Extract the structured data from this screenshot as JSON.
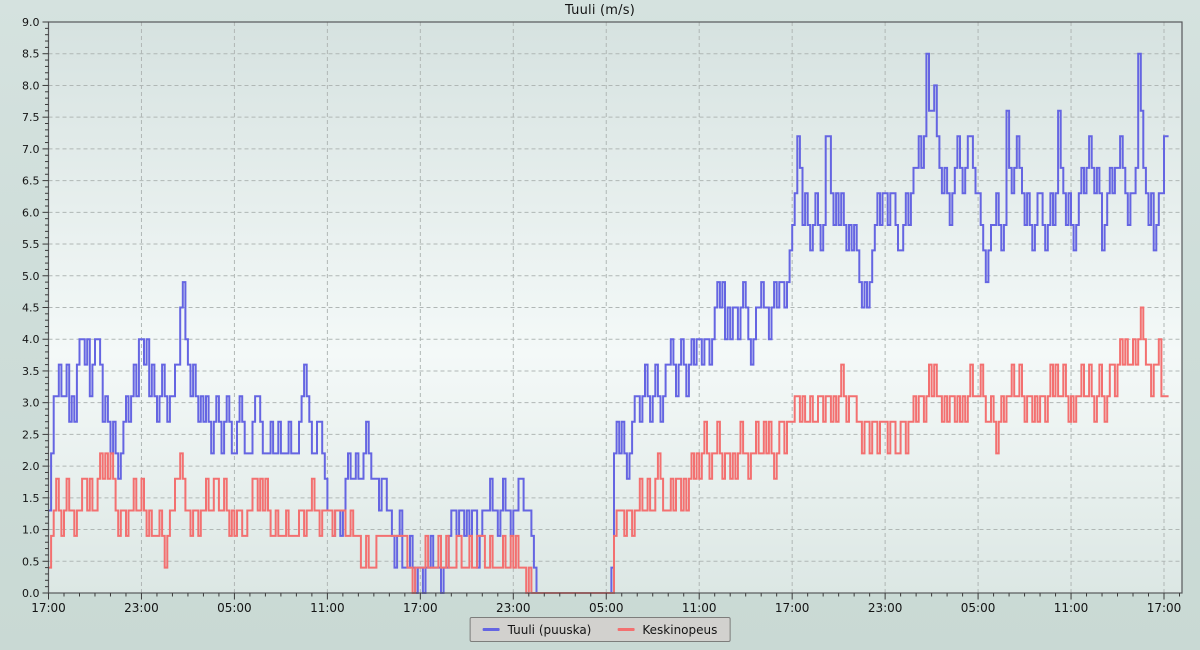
{
  "page": {
    "title": "Tuuli (m/s)"
  },
  "colors": {
    "page_bg": "#cfdeda",
    "plot_bg_top": "#d6e2e0",
    "plot_bg_mid": "#f4f9f8",
    "plot_bg_bottom": "#dce7e4",
    "plot_border": "#56585a",
    "grid": "#b0b7b5",
    "tick": "#3a3a3a",
    "label_text": "#141414",
    "legend_bg": "#d2d1ce",
    "legend_border": "#7d7d7b"
  },
  "chart_data": {
    "type": "line",
    "title": "Tuuli (m/s)",
    "step_interpolation": true,
    "sample_interval_minutes": 10,
    "duration_hours": 72,
    "x_axis": {
      "tick_labels": [
        "17:00",
        "23:00",
        "05:00",
        "11:00",
        "17:00",
        "23:00",
        "05:00",
        "11:00",
        "17:00",
        "23:00",
        "05:00",
        "11:00",
        "17:00"
      ],
      "major_tick_every_hours": 6,
      "minor_tick_every_hours": 1
    },
    "y_axis": {
      "min": 0.0,
      "max": 9.0,
      "major_step": 0.5,
      "minor_step": 0.1
    },
    "grid": {
      "horizontal": true,
      "vertical": true,
      "style": "dashed"
    },
    "legend": {
      "position": "bottom-center",
      "entries": [
        "Tuuli (puuska)",
        "Keskinopeus"
      ]
    },
    "series": [
      {
        "name": "Tuuli (puuska)",
        "color": "#6565e2",
        "values": [
          1.3,
          2.2,
          3.1,
          3.1,
          3.6,
          3.1,
          3.1,
          3.6,
          2.7,
          3.1,
          2.7,
          3.6,
          4.0,
          4.0,
          3.6,
          4.0,
          3.1,
          3.6,
          4.0,
          4.0,
          3.6,
          2.7,
          3.1,
          2.7,
          2.2,
          2.7,
          2.2,
          1.8,
          2.2,
          2.7,
          3.1,
          2.7,
          3.1,
          3.6,
          3.1,
          4.0,
          4.0,
          3.6,
          4.0,
          3.1,
          3.6,
          3.1,
          2.7,
          3.1,
          3.6,
          3.1,
          2.7,
          3.1,
          3.1,
          3.6,
          3.6,
          4.5,
          4.9,
          4.0,
          3.6,
          3.1,
          3.6,
          3.1,
          2.7,
          3.1,
          2.7,
          3.1,
          2.7,
          2.2,
          2.7,
          3.1,
          2.7,
          2.2,
          2.7,
          3.1,
          2.7,
          2.2,
          2.2,
          2.7,
          3.1,
          2.7,
          2.2,
          2.2,
          2.2,
          2.7,
          3.1,
          3.1,
          2.7,
          2.2,
          2.2,
          2.2,
          2.7,
          2.2,
          2.2,
          2.7,
          2.2,
          2.2,
          2.2,
          2.7,
          2.2,
          2.2,
          2.2,
          2.7,
          3.1,
          3.6,
          3.1,
          2.7,
          2.2,
          2.2,
          2.7,
          2.7,
          2.2,
          1.8,
          1.3,
          1.3,
          0.9,
          1.3,
          1.3,
          0.9,
          1.3,
          1.8,
          2.2,
          1.8,
          1.8,
          2.2,
          1.8,
          1.8,
          2.2,
          2.7,
          2.2,
          1.8,
          1.8,
          1.8,
          1.3,
          1.8,
          1.8,
          1.3,
          1.3,
          0.9,
          0.4,
          0.9,
          1.3,
          0.4,
          0.4,
          0.4,
          0.9,
          0.4,
          0.0,
          0.4,
          0.4,
          0.0,
          0.4,
          0.4,
          0.9,
          0.4,
          0.4,
          0.4,
          0.0,
          0.4,
          0.4,
          0.9,
          1.3,
          1.3,
          0.9,
          1.3,
          1.3,
          0.9,
          1.3,
          0.9,
          1.3,
          1.3,
          0.4,
          0.9,
          1.3,
          1.3,
          1.3,
          1.8,
          1.3,
          1.3,
          0.9,
          1.3,
          1.8,
          1.3,
          1.3,
          0.9,
          1.3,
          1.3,
          1.8,
          1.8,
          1.3,
          1.3,
          1.3,
          0.9,
          0.4,
          0.0,
          0.0,
          0.0,
          0.0,
          0.0,
          0.0,
          0.0,
          0.0,
          0.0,
          0.0,
          0.0,
          0.0,
          0.0,
          0.0,
          0.0,
          0.0,
          0.0,
          0.0,
          0.0,
          0.0,
          0.0,
          0.0,
          0.0,
          0.0,
          0.0,
          0.0,
          0.0,
          0.0,
          0.0,
          0.4,
          2.2,
          2.7,
          2.2,
          2.7,
          2.2,
          1.8,
          2.2,
          2.7,
          3.1,
          3.1,
          2.7,
          3.1,
          3.6,
          3.1,
          2.7,
          3.1,
          3.6,
          3.1,
          2.7,
          3.1,
          3.6,
          3.6,
          4.0,
          3.6,
          3.1,
          3.6,
          4.0,
          3.6,
          3.1,
          3.6,
          4.0,
          3.6,
          4.0,
          4.0,
          3.6,
          4.0,
          4.0,
          3.6,
          4.0,
          4.5,
          4.9,
          4.5,
          4.9,
          4.0,
          4.5,
          4.0,
          4.5,
          4.5,
          4.0,
          4.5,
          4.9,
          4.5,
          4.0,
          3.6,
          4.0,
          4.5,
          4.5,
          4.9,
          4.5,
          4.5,
          4.0,
          4.5,
          4.9,
          4.5,
          4.9,
          4.9,
          4.5,
          4.9,
          5.4,
          5.8,
          6.3,
          7.2,
          6.7,
          5.8,
          6.3,
          5.8,
          5.4,
          5.8,
          6.3,
          5.8,
          5.4,
          5.8,
          7.2,
          7.2,
          6.3,
          5.8,
          6.3,
          5.8,
          6.3,
          5.8,
          5.4,
          5.8,
          5.4,
          5.8,
          5.4,
          4.9,
          4.5,
          4.9,
          4.5,
          4.9,
          5.4,
          5.8,
          6.3,
          5.8,
          6.3,
          6.3,
          5.8,
          6.3,
          6.3,
          5.8,
          5.4,
          5.4,
          5.8,
          6.3,
          5.8,
          6.3,
          6.7,
          6.7,
          7.2,
          6.7,
          7.2,
          8.5,
          7.6,
          7.6,
          8.0,
          7.2,
          6.7,
          6.3,
          6.7,
          6.3,
          5.8,
          6.3,
          6.7,
          7.2,
          6.7,
          6.3,
          6.7,
          7.2,
          7.2,
          6.7,
          6.3,
          6.3,
          5.8,
          5.4,
          4.9,
          5.4,
          5.8,
          5.8,
          6.3,
          5.8,
          5.4,
          5.8,
          7.6,
          6.7,
          6.3,
          6.7,
          7.2,
          6.7,
          6.3,
          5.8,
          6.3,
          5.8,
          5.4,
          5.8,
          6.3,
          6.3,
          5.8,
          5.4,
          5.8,
          6.3,
          5.8,
          6.3,
          7.6,
          6.7,
          6.3,
          5.8,
          6.3,
          5.8,
          5.4,
          5.8,
          6.3,
          6.7,
          6.3,
          6.7,
          7.2,
          6.7,
          6.3,
          6.7,
          6.3,
          5.4,
          5.8,
          6.3,
          6.7,
          6.3,
          6.7,
          6.7,
          7.2,
          6.7,
          6.3,
          5.8,
          6.3,
          6.3,
          6.7,
          8.5,
          7.6,
          6.7,
          6.3,
          5.8,
          6.3,
          5.4,
          5.8,
          6.3,
          6.3,
          7.2
        ]
      },
      {
        "name": "Keskinopeus",
        "color": "#f37070",
        "values": [
          0.4,
          0.9,
          1.3,
          1.8,
          1.3,
          0.9,
          1.3,
          1.8,
          1.3,
          1.3,
          0.9,
          1.3,
          1.3,
          1.8,
          1.8,
          1.3,
          1.8,
          1.3,
          1.3,
          1.8,
          2.2,
          1.8,
          2.2,
          1.8,
          2.2,
          1.8,
          1.3,
          0.9,
          1.3,
          1.3,
          0.9,
          1.3,
          1.3,
          1.8,
          1.3,
          1.3,
          1.8,
          1.3,
          0.9,
          1.3,
          0.9,
          0.9,
          0.9,
          1.3,
          0.9,
          0.4,
          0.9,
          1.3,
          1.3,
          1.8,
          1.8,
          2.2,
          1.8,
          1.3,
          1.3,
          0.9,
          1.3,
          1.3,
          0.9,
          1.3,
          1.3,
          1.8,
          1.3,
          1.3,
          1.8,
          1.8,
          1.3,
          1.3,
          1.8,
          1.3,
          0.9,
          1.3,
          0.9,
          1.3,
          1.3,
          0.9,
          0.9,
          1.3,
          1.3,
          1.8,
          1.8,
          1.3,
          1.8,
          1.3,
          1.8,
          1.3,
          0.9,
          0.9,
          1.3,
          0.9,
          0.9,
          0.9,
          1.3,
          0.9,
          0.9,
          0.9,
          0.9,
          1.3,
          1.3,
          0.9,
          1.3,
          1.3,
          1.8,
          1.3,
          1.3,
          0.9,
          1.3,
          1.3,
          1.3,
          1.3,
          0.9,
          1.3,
          1.3,
          1.3,
          1.3,
          0.9,
          0.9,
          1.3,
          0.9,
          0.9,
          0.9,
          0.4,
          0.4,
          0.9,
          0.4,
          0.4,
          0.4,
          0.9,
          0.9,
          0.9,
          0.9,
          0.9,
          0.9,
          0.9,
          0.9,
          0.9,
          0.9,
          0.9,
          0.9,
          0.4,
          0.4,
          0.0,
          0.4,
          0.4,
          0.4,
          0.4,
          0.9,
          0.4,
          0.4,
          0.4,
          0.4,
          0.9,
          0.4,
          0.4,
          0.9,
          0.4,
          0.4,
          0.4,
          0.9,
          0.9,
          0.4,
          0.4,
          0.4,
          0.9,
          0.4,
          0.4,
          0.9,
          0.9,
          0.9,
          0.4,
          0.4,
          0.9,
          0.4,
          0.4,
          0.4,
          0.4,
          0.9,
          0.4,
          0.4,
          0.9,
          0.4,
          0.9,
          0.4,
          0.4,
          0.4,
          0.0,
          0.4,
          0.0,
          0.0,
          0.0,
          0.0,
          0.0,
          0.0,
          0.0,
          0.0,
          0.0,
          0.0,
          0.0,
          0.0,
          0.0,
          0.0,
          0.0,
          0.0,
          0.0,
          0.0,
          0.0,
          0.0,
          0.0,
          0.0,
          0.0,
          0.0,
          0.0,
          0.0,
          0.0,
          0.0,
          0.0,
          0.0,
          0.0,
          0.0,
          0.9,
          1.3,
          1.3,
          1.3,
          0.9,
          1.3,
          1.3,
          0.9,
          1.3,
          1.3,
          1.8,
          1.3,
          1.3,
          1.8,
          1.3,
          1.3,
          1.8,
          2.2,
          1.8,
          1.3,
          1.3,
          1.3,
          1.8,
          1.3,
          1.8,
          1.8,
          1.3,
          1.8,
          1.3,
          1.8,
          2.2,
          1.8,
          2.2,
          1.8,
          2.2,
          2.7,
          2.2,
          1.8,
          2.2,
          2.2,
          2.7,
          2.2,
          1.8,
          2.2,
          2.2,
          1.8,
          2.2,
          1.8,
          2.2,
          2.7,
          2.2,
          2.2,
          1.8,
          2.2,
          2.2,
          2.7,
          2.2,
          2.2,
          2.7,
          2.2,
          2.7,
          2.2,
          1.8,
          2.2,
          2.7,
          2.7,
          2.2,
          2.7,
          2.7,
          2.7,
          3.1,
          3.1,
          2.7,
          3.1,
          2.7,
          2.7,
          3.1,
          2.7,
          2.7,
          3.1,
          3.1,
          2.7,
          3.1,
          3.1,
          2.7,
          3.1,
          2.7,
          3.1,
          3.6,
          3.1,
          2.7,
          3.1,
          3.1,
          3.1,
          2.7,
          2.7,
          2.2,
          2.7,
          2.7,
          2.2,
          2.7,
          2.7,
          2.2,
          2.7,
          2.7,
          2.7,
          2.2,
          2.7,
          2.7,
          2.2,
          2.2,
          2.7,
          2.7,
          2.2,
          2.7,
          2.7,
          3.1,
          2.7,
          3.1,
          3.1,
          2.7,
          3.1,
          3.6,
          3.1,
          3.6,
          3.1,
          3.1,
          2.7,
          3.1,
          2.7,
          3.1,
          3.1,
          2.7,
          3.1,
          2.7,
          3.1,
          2.7,
          3.1,
          3.6,
          3.1,
          3.1,
          3.1,
          3.6,
          3.1,
          2.7,
          2.7,
          3.1,
          2.7,
          2.2,
          2.7,
          3.1,
          2.7,
          3.1,
          3.1,
          3.6,
          3.1,
          3.1,
          3.6,
          3.1,
          2.7,
          3.1,
          3.1,
          2.7,
          3.1,
          2.7,
          3.1,
          3.1,
          2.7,
          3.1,
          3.6,
          3.1,
          3.6,
          3.1,
          3.1,
          3.6,
          3.1,
          2.7,
          3.1,
          2.7,
          3.1,
          3.1,
          3.6,
          3.1,
          3.1,
          3.6,
          3.1,
          2.7,
          3.1,
          3.6,
          3.1,
          2.7,
          3.1,
          3.6,
          3.6,
          3.1,
          3.6,
          4.0,
          3.6,
          4.0,
          3.6,
          3.6,
          4.0,
          3.6,
          4.0,
          4.5,
          4.0,
          3.6,
          3.6,
          3.1,
          3.6,
          3.6,
          4.0,
          3.1,
          3.1
        ]
      }
    ]
  }
}
